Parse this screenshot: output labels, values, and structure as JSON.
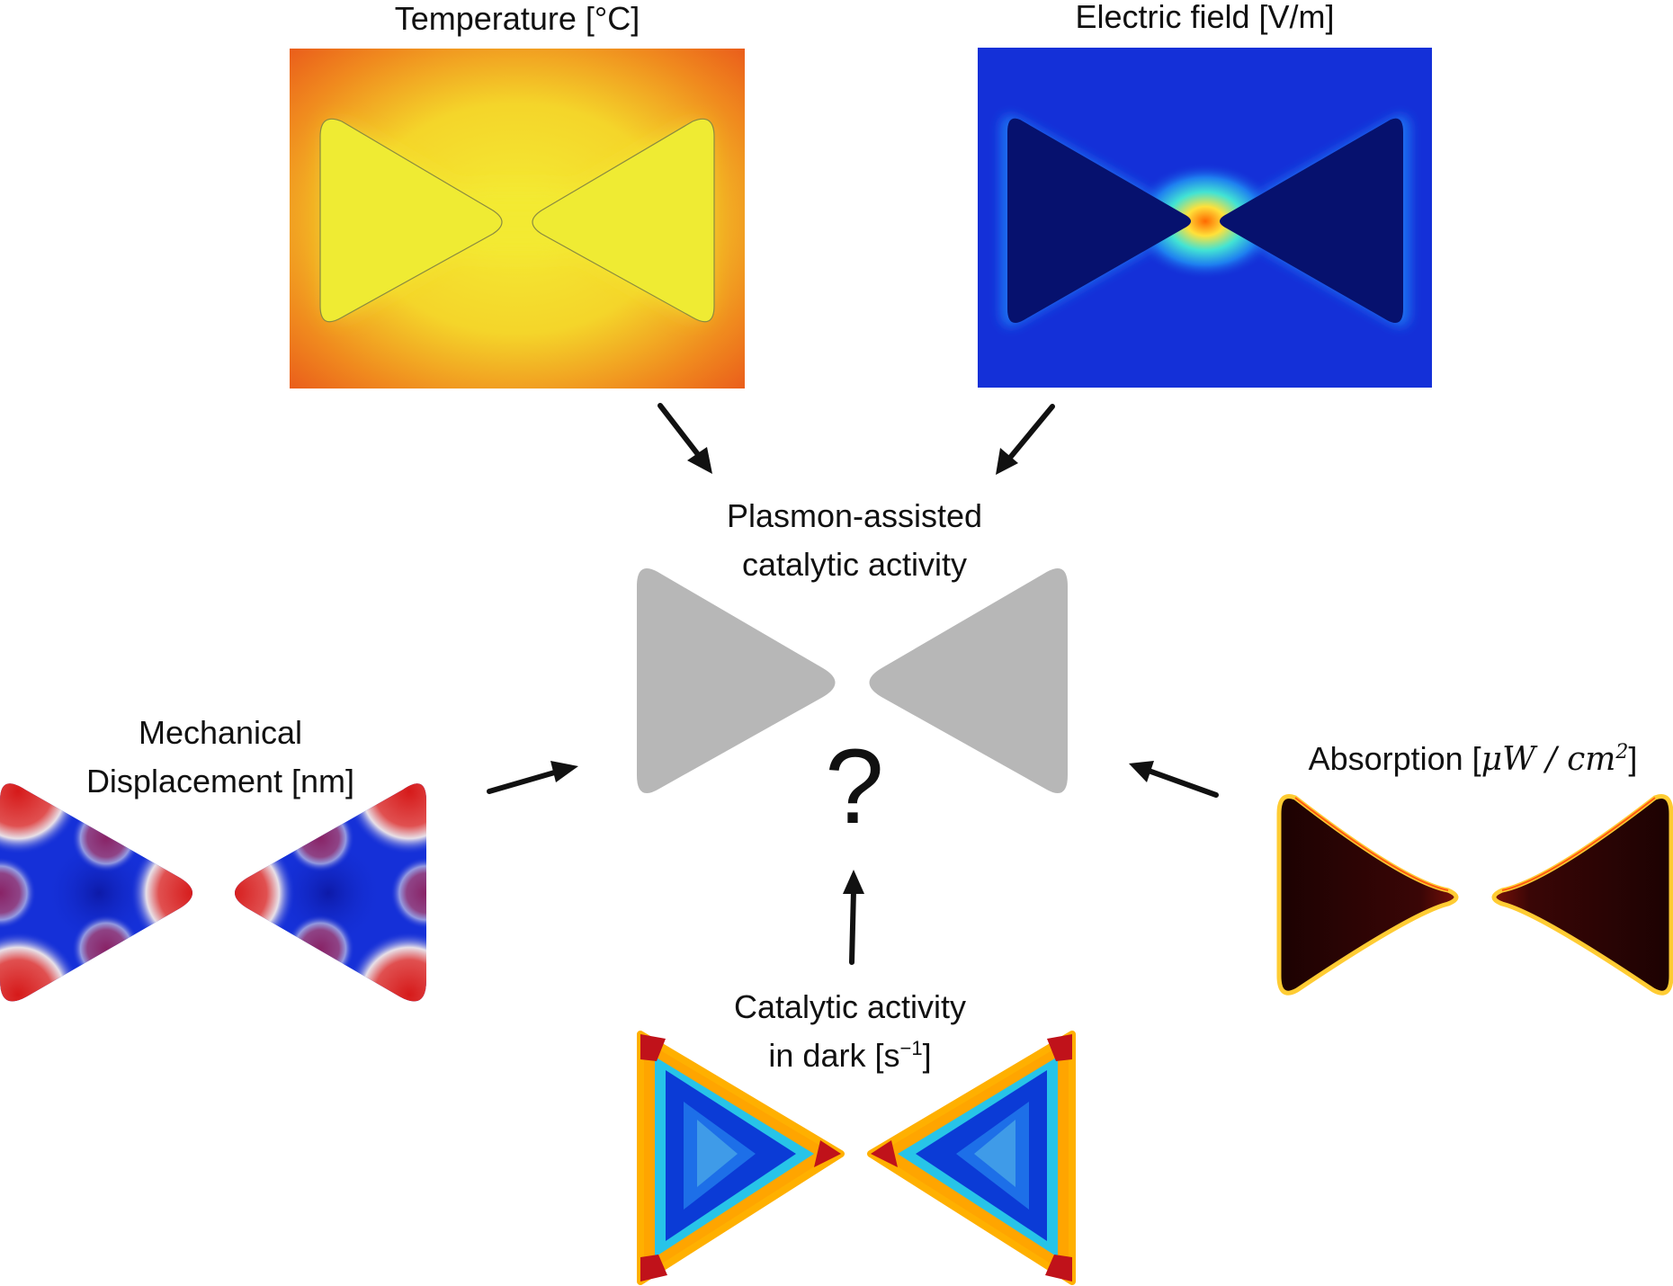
{
  "panels": {
    "temperature": {
      "title": "Temperature [°C]"
    },
    "electric_field": {
      "title": "Electric field [V/m]"
    },
    "center": {
      "line1": "Plasmon-assisted",
      "line2": "catalytic activity",
      "question": "?"
    },
    "mechanical": {
      "line1": "Mechanical",
      "line2": "Displacement [nm]"
    },
    "absorption": {
      "prefix": "Absorption [",
      "math": "μW / cm",
      "exp": "2",
      "suffix": "]"
    },
    "dark": {
      "line1": "Catalytic activity",
      "line2_prefix": "in dark [s",
      "exp": "−1",
      "line2_suffix": "]"
    }
  },
  "colors": {
    "temp_outer": "#e8501a",
    "temp_inner": "#eded30",
    "efield_bg": "#1430d8",
    "efield_tri": "#06116e",
    "center_tri": "#b7b7b7",
    "mech_blue": "#1530d8",
    "mech_red": "#d61a1a",
    "abs_dark": "#2a0505",
    "abs_edge": "#ffcc33",
    "dark_blue": "#0b3bd6",
    "dark_light": "#3f9be8",
    "dark_orange": "#ffa500",
    "dark_red": "#c0121a"
  }
}
